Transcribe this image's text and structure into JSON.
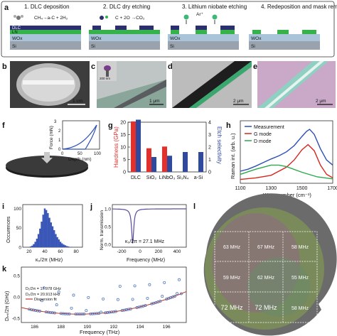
{
  "panel_labels": [
    "a",
    "b",
    "c",
    "d",
    "e",
    "f",
    "g",
    "h",
    "i",
    "j",
    "k",
    "l"
  ],
  "process": {
    "steps": [
      {
        "title": "1. DLC deposition",
        "reaction": "CH₄→a-C + 2H₂"
      },
      {
        "title": "2. DLC dry etching",
        "reaction": "C + 2O →CO₂"
      },
      {
        "title": "3. Lithium niobate etching",
        "ion": "Ar⁺"
      },
      {
        "title": "4. Redeposition and mask removal"
      }
    ],
    "layers": {
      "dlc": "DLC",
      "ln": "LN",
      "wox": "WOx",
      "si": "Si"
    },
    "colors": {
      "dlc": "#2b2f6e",
      "ln": "#36b24a",
      "wox": "#a9c3d8",
      "si": "#9aa3ad",
      "mask": "#2b2f6e",
      "ion": "#3cb878"
    }
  },
  "micrographs": {
    "b_scale": "1 cm",
    "c_scale": "1 μm",
    "c_inset_scale": "200 nm",
    "d_scale": "2 μm",
    "e_scale": "2 μm"
  },
  "panel_f": {
    "xlabel": "Depth (nm)",
    "ylabel": "Force (mN)",
    "xticks": [
      "0",
      "50",
      "100"
    ],
    "yticks": [
      "0",
      "1",
      "2",
      "3"
    ]
  },
  "chart_data": [
    {
      "type": "bar",
      "panel": "g",
      "categories": [
        "DLC",
        "SiO₂",
        "LiNbO₃",
        "Si₃N₄",
        "a-Si"
      ],
      "series": [
        {
          "name": "Hardness (GPa)",
          "axis": "left",
          "color": "#e2312d",
          "values": [
            20.3,
            9.5,
            10.2,
            null,
            null
          ]
        },
        {
          "name": "Etch selectivity",
          "axis": "right",
          "color": "#2f4a9c",
          "values": [
            4.2,
            1.2,
            1.3,
            1.6,
            1.6
          ]
        }
      ],
      "ylabel": "Hardness (GPa)",
      "ylabel_right": "Etch selectivity",
      "ylim": [
        0,
        20
      ],
      "ylim_right": [
        0,
        4
      ],
      "yticks": [
        0,
        5,
        10,
        15,
        20
      ],
      "yticks_right": [
        0,
        1,
        2,
        3,
        4
      ]
    },
    {
      "type": "line",
      "panel": "h",
      "xlabel": "Wavenumber (cm⁻¹)",
      "ylabel": "Raman int. (arb. u.)",
      "xlim": [
        1100,
        1700
      ],
      "xticks": [
        1100,
        1300,
        1500,
        1700
      ],
      "series": [
        {
          "name": "Measurement",
          "color": "#2d4fb5",
          "x": [
            1100,
            1150,
            1200,
            1250,
            1300,
            1350,
            1400,
            1450,
            1500,
            1530,
            1550,
            1580,
            1620,
            1660,
            1700
          ],
          "y": [
            0.18,
            0.22,
            0.28,
            0.35,
            0.42,
            0.48,
            0.56,
            0.68,
            0.86,
            0.96,
            1.0,
            0.9,
            0.62,
            0.4,
            0.3
          ]
        },
        {
          "name": "G mode",
          "color": "#d7261e",
          "x": [
            1100,
            1200,
            1300,
            1400,
            1450,
            1500,
            1540,
            1580,
            1620,
            1660,
            1700
          ],
          "y": [
            0.02,
            0.05,
            0.1,
            0.26,
            0.4,
            0.6,
            0.7,
            0.58,
            0.3,
            0.12,
            0.05
          ]
        },
        {
          "name": "D mode",
          "color": "#2aa94a",
          "x": [
            1100,
            1200,
            1300,
            1350,
            1400,
            1500,
            1600,
            1700
          ],
          "y": [
            0.12,
            0.22,
            0.3,
            0.3,
            0.27,
            0.16,
            0.07,
            0.03
          ]
        }
      ]
    },
    {
      "type": "bar",
      "panel": "i",
      "xlabel": "κ₀/2π (MHz)",
      "ylabel": "Occurences",
      "xticks": [
        20,
        40,
        60,
        80
      ],
      "yticks": [
        0,
        50,
        100
      ],
      "bins_x": [
        22,
        24,
        26,
        28,
        30,
        32,
        34,
        36,
        38,
        40,
        42,
        44,
        46,
        48,
        50,
        52,
        54,
        56,
        58,
        60,
        62,
        64,
        66,
        68,
        70,
        72,
        74
      ],
      "values": [
        2,
        4,
        8,
        14,
        22,
        34,
        48,
        66,
        84,
        100,
        96,
        88,
        76,
        64,
        54,
        44,
        34,
        26,
        20,
        14,
        10,
        7,
        5,
        3,
        2,
        1,
        1
      ],
      "color": "#3a57b7"
    },
    {
      "type": "line",
      "panel": "j",
      "xlabel": "Frequency (MHz)",
      "ylabel": "Norm. transmission",
      "xticks": [
        -200,
        0,
        200,
        400
      ],
      "yticks": [
        0.0,
        0.5,
        1.0
      ],
      "annotation": "κ₀/2π = 27.1 MHz",
      "center": -80,
      "linewidth": 27.1
    },
    {
      "type": "scatter",
      "panel": "k",
      "xlabel": "Frequency (THz)",
      "ylabel": "Dᵢₙₜ/2π (GHz)",
      "xticks": [
        186,
        188,
        190,
        192,
        194,
        196
      ],
      "yticks": [
        -0.5,
        0.0,
        0.5
      ],
      "xlim": [
        185,
        197.5
      ],
      "ylim": [
        -0.6,
        0.7
      ],
      "annotations": [
        "D₁/2π = 17.978 GHz",
        "D₂/2π = 20.913 kHz"
      ],
      "legend": "Dispersion fit",
      "color": "#3f68b7",
      "fit_color": "#c0392b"
    }
  ],
  "panel_l": {
    "cells": [
      "63 MHz",
      "67 MHz",
      "58 MHz",
      "59 MHz",
      "62 MHz",
      "55 MHz",
      "72 MHz",
      "72 MHz",
      "58 MHz"
    ]
  }
}
